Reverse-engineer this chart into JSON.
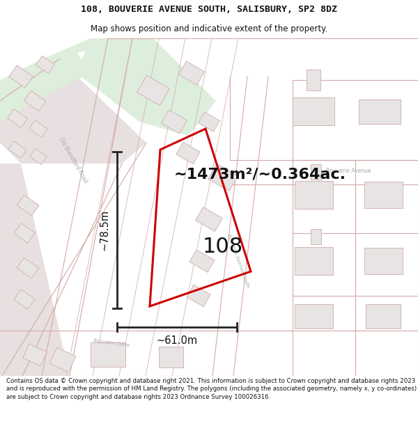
{
  "title_line1": "108, BOUVERIE AVENUE SOUTH, SALISBURY, SP2 8DZ",
  "title_line2": "Map shows position and indicative extent of the property.",
  "area_text": "~1473m²/~0.364ac.",
  "label_108": "108",
  "dim_height": "~78.5m",
  "dim_width": "~61.0m",
  "footer_text": "Contains OS data © Crown copyright and database right 2021. This information is subject to Crown copyright and database rights 2023 and is reproduced with the permission of HM Land Registry. The polygons (including the associated geometry, namely x, y co-ordinates) are subject to Crown copyright and database rights 2023 Ordnance Survey 100026316.",
  "map_bg": "#f5f0f0",
  "road_fill": "#e8e0e0",
  "road_edge": "#d4a8a8",
  "green_fill": "#ddeedd",
  "building_fill": "#e8e4e4",
  "building_edge": "#d4b4b4",
  "plot_color": "#cc0000",
  "dim_color": "#222222",
  "text_color": "#111111",
  "road_label_color": "#999999",
  "white": "#ffffff"
}
